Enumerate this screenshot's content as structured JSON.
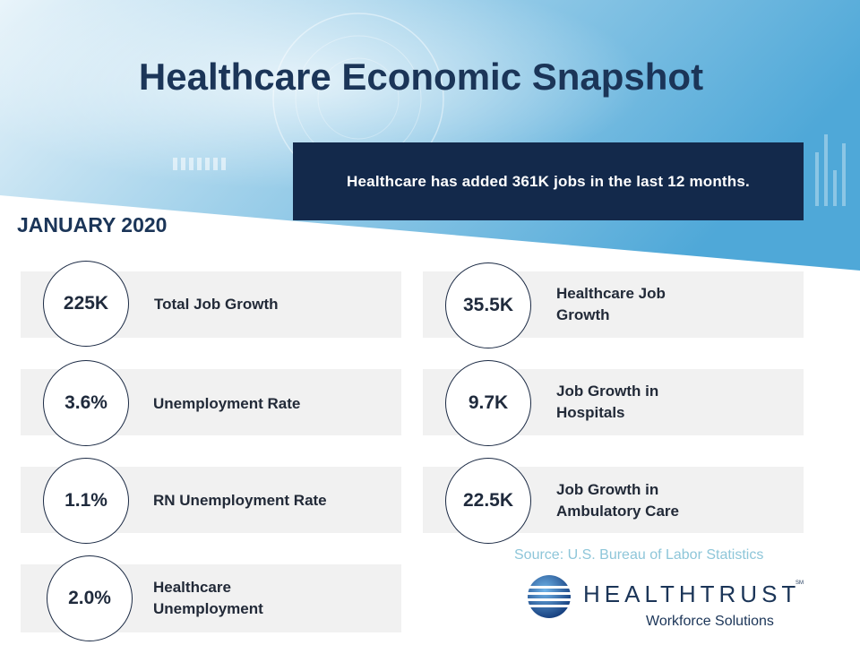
{
  "title": "Healthcare Economic Snapshot",
  "callout": "Healthcare has added 361K jobs in the last 12 months.",
  "period": "JANUARY 2020",
  "stats_left": [
    {
      "value": "225K",
      "label": "Total Job Growth"
    },
    {
      "value": "3.6%",
      "label": "Unemployment Rate"
    },
    {
      "value": "1.1%",
      "label": "RN Unemployment Rate"
    },
    {
      "value": "2.0%",
      "label": "Healthcare Unemployment"
    }
  ],
  "stats_right": [
    {
      "value": "35.5K",
      "label": "Healthcare Job Growth"
    },
    {
      "value": "9.7K",
      "label": "Job Growth in Hospitals"
    },
    {
      "value": "22.5K",
      "label": "Job Growth in Ambulatory Care"
    }
  ],
  "source": "Source: U.S. Bureau of Labor Statistics",
  "logo": {
    "wordmark": "HEALTHTRUST",
    "tm": "SM",
    "subtitle": "Workforce Solutions"
  },
  "colors": {
    "navy": "#13294b",
    "title": "#1b3558",
    "panel": "#f1f1f1",
    "source": "#8ec6d9"
  }
}
